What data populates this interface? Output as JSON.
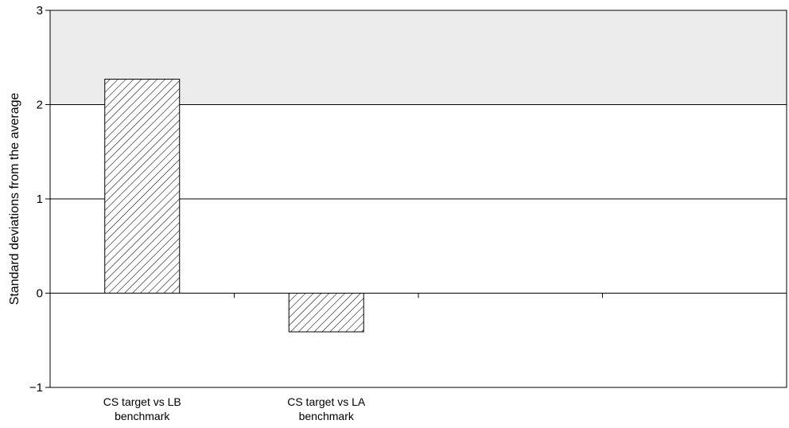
{
  "chart_data": {
    "type": "bar",
    "title": "",
    "xlabel": "",
    "ylabel": "Standard deviations from the average",
    "categories": [
      [
        "CS target vs LB",
        "benchmark"
      ],
      [
        "CS target vs LA",
        "benchmark"
      ],
      [
        "",
        ""
      ],
      [
        "",
        ""
      ]
    ],
    "values": [
      2.27,
      -0.41,
      null,
      null
    ],
    "ylim": [
      -1,
      3
    ],
    "yticks": [
      -1,
      0,
      1,
      2,
      3
    ],
    "ytick_labels": [
      "−1",
      "0",
      "1",
      "2",
      "3"
    ],
    "grid": true,
    "shaded_band": [
      2,
      3
    ],
    "colors": {
      "band": "#ececec",
      "bar_fill": "#ffffff",
      "hatch": "#000000",
      "axis": "#000000"
    },
    "bar_pattern": "diagonal-hatch"
  }
}
